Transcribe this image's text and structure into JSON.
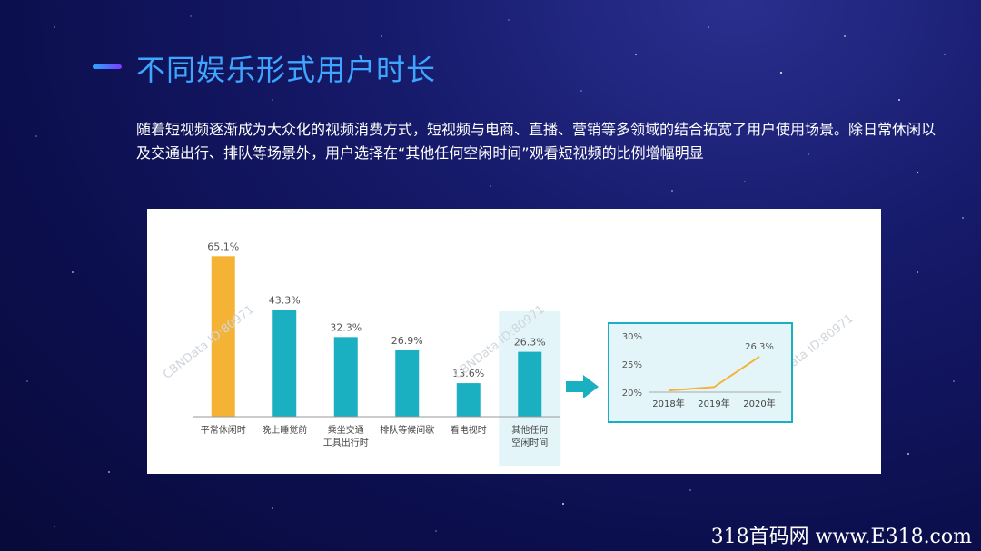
{
  "slide": {
    "title": "不同娱乐形式用户时长",
    "description": "随着短视频逐渐成为大众化的视频消费方式，短视频与电商、直播、营销等多领域的结合拓宽了用户使用场景。除日常休闲以及交通出行、排队等场景外，用户选择在“其他任何空闲时间”观看短视频的比例增幅明显",
    "footer": "318首码网 www.E318.com"
  },
  "watermark": "CBNData ID:80971",
  "colors": {
    "highlight_bar": "#f5b335",
    "bar": "#1aafc1",
    "line": "#f5b335",
    "arrow": "#1aafc1",
    "inset_bg": "#e3f5f9",
    "inset_border": "#1aafc1"
  },
  "chart_data": [
    {
      "type": "bar",
      "categories": [
        [
          "平常休闲时"
        ],
        [
          "晚上睡觉前"
        ],
        [
          "乘坐交通",
          "工具出行时"
        ],
        [
          "排队等候间歇"
        ],
        [
          "看电视时"
        ],
        [
          "其他任何",
          "空闲时间"
        ]
      ],
      "values": [
        65.1,
        43.3,
        32.3,
        26.9,
        13.6,
        26.3
      ],
      "value_labels": [
        "65.1%",
        "43.3%",
        "32.3%",
        "26.9%",
        "13.6%",
        "26.3%"
      ],
      "highlight_index": 0,
      "shaded_index": 5,
      "ylim": [
        0,
        70
      ]
    },
    {
      "type": "line",
      "x": [
        "2018年",
        "2019年",
        "2020年"
      ],
      "values": [
        20.3,
        20.9,
        26.3
      ],
      "yticks": [
        "30%",
        "25%",
        "20%"
      ],
      "ytick_values": [
        30,
        25,
        20
      ],
      "end_label": "26.3%",
      "ylim": [
        19,
        31
      ]
    }
  ]
}
